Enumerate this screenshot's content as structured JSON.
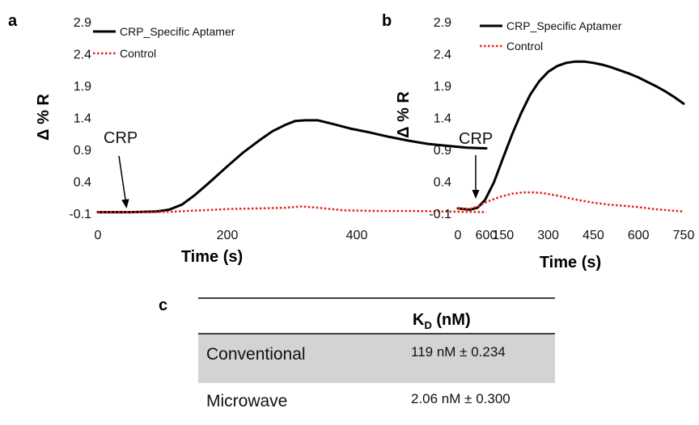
{
  "chart_data": [
    {
      "panel": "a",
      "type": "line",
      "xlabel": "Time (s)",
      "ylabel": "Δ % R",
      "xlim": [
        0,
        600
      ],
      "ylim": [
        -0.1,
        2.9
      ],
      "xticks": [
        0,
        200,
        400,
        600
      ],
      "yticks": [
        -0.1,
        0.4,
        0.9,
        1.4,
        1.9,
        2.4,
        2.9
      ],
      "grid": false,
      "legend_position": "top-left",
      "annotation": {
        "text": "CRP",
        "x": 85,
        "y": -0.05
      },
      "series": [
        {
          "name": "CRP_Specific Aptamer",
          "color": "#000000",
          "style": "solid",
          "x": [
            0,
            50,
            90,
            110,
            130,
            150,
            175,
            200,
            225,
            250,
            270,
            290,
            305,
            320,
            340,
            360,
            390,
            420,
            450,
            480,
            510,
            540,
            570,
            600
          ],
          "y": [
            -0.07,
            -0.07,
            -0.06,
            -0.03,
            0.05,
            0.2,
            0.42,
            0.65,
            0.87,
            1.06,
            1.2,
            1.3,
            1.36,
            1.37,
            1.37,
            1.32,
            1.24,
            1.18,
            1.11,
            1.05,
            1.0,
            0.97,
            0.94,
            0.93
          ]
        },
        {
          "name": "Control",
          "color": "#e8211a",
          "style": "dotted",
          "x": [
            0,
            50,
            90,
            120,
            160,
            200,
            250,
            290,
            315,
            340,
            380,
            430,
            480,
            540,
            600
          ],
          "y": [
            -0.07,
            -0.07,
            -0.07,
            -0.06,
            -0.04,
            -0.02,
            -0.01,
            0.0,
            0.02,
            0.0,
            -0.04,
            -0.05,
            -0.05,
            -0.06,
            -0.07
          ]
        }
      ]
    },
    {
      "panel": "b",
      "type": "line",
      "xlabel": "Time (s)",
      "ylabel": "Δ % R",
      "xlim": [
        0,
        750
      ],
      "ylim": [
        -0.1,
        2.9
      ],
      "xticks": [
        0,
        150,
        300,
        450,
        600,
        750
      ],
      "yticks": [
        -0.1,
        0.4,
        0.9,
        1.4,
        1.9,
        2.4,
        2.9
      ],
      "grid": false,
      "legend_position": "top-left",
      "annotation": {
        "text": "CRP",
        "x": 70,
        "y": 0.08
      },
      "series": [
        {
          "name": "CRP_Specific Aptamer",
          "color": "#000000",
          "style": "solid",
          "x": [
            0,
            40,
            65,
            90,
            120,
            150,
            180,
            210,
            240,
            270,
            300,
            330,
            360,
            390,
            420,
            450,
            480,
            510,
            540,
            570,
            600,
            630,
            660,
            690,
            720,
            750
          ],
          "y": [
            -0.01,
            -0.03,
            0.0,
            0.12,
            0.4,
            0.78,
            1.15,
            1.48,
            1.77,
            1.98,
            2.13,
            2.22,
            2.27,
            2.29,
            2.29,
            2.27,
            2.24,
            2.2,
            2.15,
            2.1,
            2.04,
            1.97,
            1.9,
            1.82,
            1.73,
            1.63
          ]
        },
        {
          "name": "Control",
          "color": "#e8211a",
          "style": "dotted",
          "x": [
            0,
            40,
            65,
            100,
            140,
            180,
            220,
            250,
            280,
            320,
            360,
            400,
            450,
            500,
            550,
            600,
            650,
            700,
            750
          ],
          "y": [
            -0.01,
            -0.02,
            0.02,
            0.1,
            0.17,
            0.22,
            0.24,
            0.24,
            0.23,
            0.2,
            0.16,
            0.12,
            0.08,
            0.05,
            0.03,
            0.01,
            -0.02,
            -0.04,
            -0.06
          ]
        }
      ]
    },
    {
      "panel": "c",
      "type": "table",
      "header": "K",
      "header_sub": "D",
      "header_unit": " (nM)",
      "rows": [
        {
          "label": "Conventional",
          "value": "119 nM ± 0.234",
          "shaded": true
        },
        {
          "label": "Microwave",
          "value": "2.06 nM ± 0.300",
          "shaded": false
        }
      ]
    }
  ],
  "colors": {
    "aptamer": "#000000",
    "control": "#e8211a",
    "table_shade": "#d3d3d3"
  }
}
